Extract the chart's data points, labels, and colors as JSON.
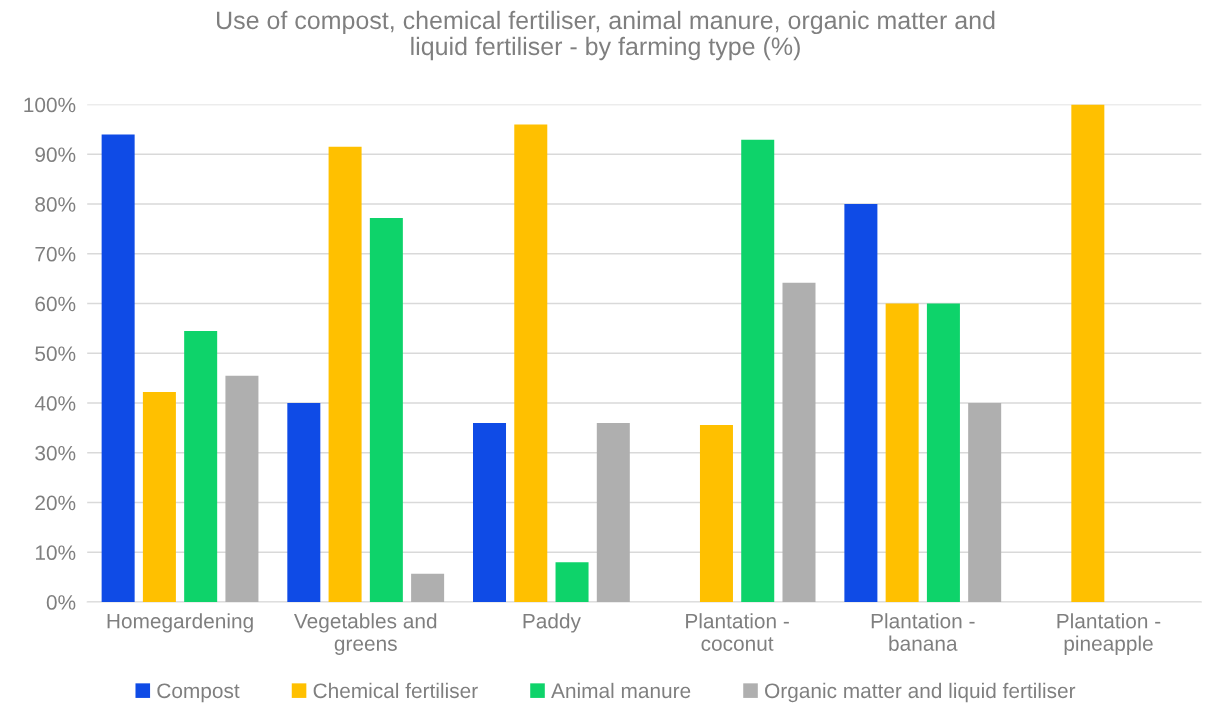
{
  "chart_data": {
    "type": "bar",
    "title": "Use of compost, chemical fertiliser, animal manure, organic matter and\nliquid fertiliser - by farming type (%)",
    "categories": [
      "Homegardening",
      "Vegetables and\ngreens",
      "Paddy",
      "Plantation -\ncoconut",
      "Plantation -\nbanana",
      "Plantation -\npineapple"
    ],
    "series": [
      {
        "name": "Compost",
        "color": "#0f4be6",
        "values": [
          94,
          40,
          36,
          0,
          80,
          0
        ]
      },
      {
        "name": "Chemical fertiliser",
        "color": "#ffc000",
        "values": [
          42.2,
          91.5,
          96,
          35.6,
          60,
          100
        ]
      },
      {
        "name": "Animal manure",
        "color": "#0ed36a",
        "values": [
          54.5,
          77.2,
          8,
          92.9,
          60,
          0
        ]
      },
      {
        "name": "Organic matter and liquid fertiliser",
        "color": "#afafaf",
        "values": [
          45.5,
          5.7,
          36,
          64.2,
          40,
          0
        ]
      }
    ],
    "ylim": [
      0,
      100
    ],
    "yticks": [
      {
        "value": 0,
        "label": "0%"
      },
      {
        "value": 10,
        "label": "10%"
      },
      {
        "value": 20,
        "label": "20%"
      },
      {
        "value": 30,
        "label": "30%"
      },
      {
        "value": 40,
        "label": "40%"
      },
      {
        "value": 50,
        "label": "50%"
      },
      {
        "value": 60,
        "label": "60%"
      },
      {
        "value": 70,
        "label": "70%"
      },
      {
        "value": 80,
        "label": "80%"
      },
      {
        "value": 90,
        "label": "90%"
      },
      {
        "value": 100,
        "label": "100%"
      }
    ],
    "grid": "y",
    "legend": "bottom"
  }
}
